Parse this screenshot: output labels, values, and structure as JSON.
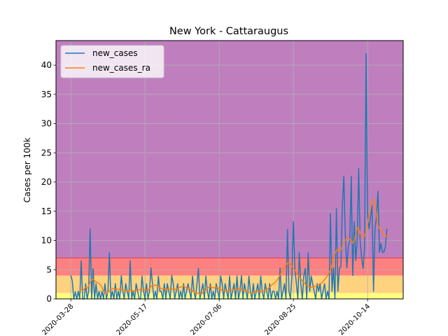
{
  "chart_data": {
    "type": "line",
    "title": "New York - Cattaraugus",
    "xlabel": "",
    "ylabel": "Cases per 100k",
    "x_start": "2020-03-28",
    "xticks": [
      "2020-03-28",
      "2020-05-17",
      "2020-07-06",
      "2020-08-25",
      "2020-10-14"
    ],
    "ylim": [
      0,
      44.2
    ],
    "yticks": [
      "0",
      "5",
      "10",
      "15",
      "20",
      "25",
      "30",
      "35",
      "40"
    ],
    "grid": true,
    "legend_position": "top-left",
    "bands": [
      {
        "from": 0,
        "to": 1,
        "color": "#ffff80"
      },
      {
        "from": 1,
        "to": 4,
        "color": "#ffd280"
      },
      {
        "from": 4,
        "to": 7,
        "color": "#ff8080"
      },
      {
        "from": 7,
        "to": 44.2,
        "color": "#bf7fbf"
      }
    ],
    "threshold_line": {
      "y": 7,
      "color": "#d9414c"
    },
    "series": [
      {
        "name": "new_cases",
        "color": "#1f77b4",
        "values": [
          4.0,
          3.1,
          0.0,
          1.2,
          0.0,
          1.3,
          0.0,
          6.5,
          0.0,
          0.0,
          2.6,
          0.0,
          1.3,
          12.0,
          0.0,
          5.2,
          0.0,
          2.6,
          0.0,
          1.3,
          0.0,
          1.3,
          0.0,
          2.6,
          0.0,
          1.3,
          7.9,
          0.0,
          1.3,
          0.0,
          2.6,
          0.0,
          1.3,
          0.0,
          4.0,
          1.3,
          0.0,
          2.6,
          1.3,
          0.0,
          6.5,
          0.0,
          1.3,
          0.0,
          2.6,
          1.3,
          0.0,
          0.0,
          3.9,
          1.3,
          0.0,
          2.6,
          0.0,
          1.3,
          5.3,
          2.6,
          0.0,
          1.3,
          0.0,
          3.9,
          1.3,
          1.3,
          0.0,
          2.6,
          0.0,
          2.6,
          1.3,
          0.0,
          4.0,
          2.6,
          0.0,
          1.3,
          2.6,
          0.0,
          1.3,
          0.0,
          2.6,
          0.0,
          1.3,
          2.6,
          1.3,
          0.0,
          3.9,
          1.3,
          0.0,
          2.6,
          5.2,
          0.0,
          1.3,
          2.6,
          0.0,
          3.9,
          1.3,
          0.0,
          2.6,
          0.0,
          1.3,
          0.0,
          2.6,
          1.3,
          0.0,
          3.9,
          2.6,
          0.0,
          2.6,
          1.3,
          0.0,
          3.9,
          0.0,
          1.3,
          2.6,
          0.0,
          3.9,
          0.0,
          1.3,
          4.0,
          0.0,
          2.6,
          1.3,
          0.0,
          3.9,
          1.3,
          0.0,
          2.6,
          0.0,
          1.3,
          2.6,
          0.0,
          3.9,
          1.3,
          0.0,
          2.6,
          1.3,
          0.0,
          2.6,
          0.0,
          1.3,
          1.3,
          0.0,
          1.3,
          0.0,
          5.3,
          0.0,
          1.3,
          2.6,
          0.0,
          11.9,
          1.3,
          0.0,
          3.9,
          13.2,
          5.2,
          2.6,
          0.0,
          7.9,
          2.6,
          0.0,
          3.9,
          5.2,
          0.0,
          7.9,
          1.3,
          3.9,
          2.6,
          1.3,
          0.0,
          2.6,
          1.3,
          2.6,
          0.0,
          1.3,
          2.6,
          0.0,
          1.3,
          0.0,
          14.6,
          1.3,
          5.3,
          0.0,
          15.5,
          1.3,
          5.3,
          5.5,
          16.0,
          21.0,
          11.0,
          5.3,
          9.0,
          10.0,
          21.0,
          4.0,
          13.2,
          6.6,
          10.0,
          22.3,
          10.0,
          7.0,
          5.2,
          9.0,
          42.0,
          14.6,
          12.0,
          14.0,
          16.0,
          1.3,
          12.0,
          14.0,
          18.4,
          8.0,
          9.5,
          8.0,
          8.0,
          9.0,
          12.0
        ]
      },
      {
        "name": "new_cases_ra",
        "color": "#ff7f0e",
        "values": [
          null,
          null,
          null,
          null,
          null,
          null,
          1.5,
          1.6,
          1.4,
          1.7,
          2.0,
          1.8,
          2.2,
          2.9,
          3.3,
          3.4,
          3.1,
          2.9,
          2.8,
          2.6,
          2.4,
          2.0,
          1.3,
          1.0,
          0.9,
          1.1,
          1.4,
          1.5,
          1.7,
          1.8,
          1.7,
          1.7,
          1.6,
          1.7,
          1.6,
          1.5,
          1.5,
          1.4,
          1.4,
          1.3,
          1.6,
          1.5,
          1.4,
          1.3,
          1.4,
          1.5,
          1.6,
          1.6,
          1.5,
          1.6,
          1.5,
          1.6,
          1.5,
          1.8,
          2.1,
          2.3,
          2.3,
          2.4,
          2.2,
          2.1,
          1.9,
          1.8,
          1.6,
          1.7,
          1.7,
          1.6,
          1.7,
          1.6,
          1.7,
          1.6,
          1.6,
          1.7,
          1.8,
          2.0,
          2.0,
          2.1,
          2.2,
          2.0,
          1.9,
          1.8,
          1.7,
          1.5,
          1.4,
          1.2,
          1.0,
          0.9,
          0.9,
          0.8,
          0.8,
          1.1,
          1.4,
          1.6,
          1.8,
          2.0,
          2.1,
          2.0,
          1.9,
          1.9,
          2.0,
          1.9,
          1.8,
          1.6,
          1.5,
          1.5,
          1.4,
          1.3,
          1.4,
          1.5,
          1.6,
          1.5,
          1.6,
          1.5,
          1.6,
          1.7,
          1.8,
          1.6,
          1.5,
          1.4,
          1.3,
          1.2,
          1.1,
          1.0,
          1.0,
          1.1,
          1.2,
          1.3,
          1.3,
          1.2,
          1.2,
          1.3,
          1.4,
          1.5,
          1.6,
          1.8,
          2.0,
          2.3,
          2.5,
          2.7,
          2.9,
          3.2,
          3.6,
          4.1,
          4.6,
          5.0,
          5.4,
          5.8,
          6.2,
          6.1,
          6.0,
          5.6,
          5.3,
          4.9,
          4.5,
          4.1,
          3.8,
          3.5,
          3.1,
          2.8,
          2.5,
          2.3,
          2.2,
          2.1,
          2.0,
          2.0,
          2.1,
          2.2,
          2.3,
          2.4,
          2.6,
          2.7,
          3.0,
          3.3,
          3.6,
          4.0,
          4.5,
          5.0,
          5.8,
          6.8,
          7.8,
          8.2,
          8.5,
          8.0,
          8.5,
          9.0,
          9.5,
          10.1,
          10.3,
          10.3,
          10.2,
          9.9,
          9.5,
          10.0,
          11.0,
          12.1,
          12.2,
          11.3,
          10.6,
          10.4,
          10.8,
          11.5,
          12.7,
          14.1,
          15.4,
          16.7,
          17.0,
          16.5,
          14.5,
          12.5,
          12.0,
          11.9,
          11.4,
          11.0,
          10.7,
          10.8,
          11.1
        ]
      }
    ]
  }
}
